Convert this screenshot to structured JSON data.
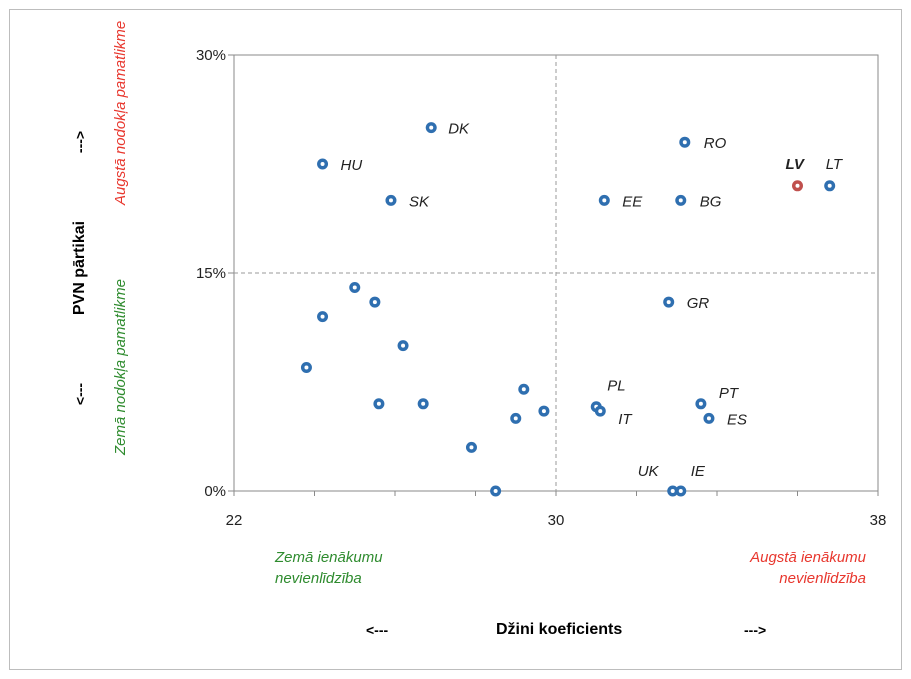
{
  "chart_data": {
    "type": "scatter",
    "title": "",
    "xlabel": "Džini koeficients",
    "ylabel": "PVN pārtikai",
    "xlim": [
      22,
      38
    ],
    "ylim": [
      0,
      30
    ],
    "x_ticks": [
      22,
      30,
      38
    ],
    "x_tick_labels": [
      "22",
      "30",
      "38"
    ],
    "y_ticks": [
      0,
      15,
      30
    ],
    "y_tick_labels": [
      "0%",
      "15%",
      "30%"
    ],
    "reference_lines": {
      "x": 30,
      "y": 15,
      "style": "dashed"
    },
    "marker_color": "#2f6fb0",
    "highlight_color": "#c0504d",
    "points": [
      {
        "x": 24.2,
        "y": 22.5,
        "label": "HU"
      },
      {
        "x": 26.9,
        "y": 25.0,
        "label": "DK"
      },
      {
        "x": 25.9,
        "y": 20.0,
        "label": "SK"
      },
      {
        "x": 33.2,
        "y": 24.0,
        "label": "RO"
      },
      {
        "x": 31.2,
        "y": 20.0,
        "label": "EE"
      },
      {
        "x": 33.1,
        "y": 20.0,
        "label": "BG"
      },
      {
        "x": 36.0,
        "y": 21.0,
        "label": "LV",
        "highlight": true
      },
      {
        "x": 36.8,
        "y": 21.0,
        "label": "LT"
      },
      {
        "x": 32.8,
        "y": 13.0,
        "label": "GR"
      },
      {
        "x": 31.0,
        "y": 5.8,
        "label": "PL"
      },
      {
        "x": 31.1,
        "y": 5.5,
        "label": "IT"
      },
      {
        "x": 33.6,
        "y": 6.0,
        "label": "PT"
      },
      {
        "x": 33.8,
        "y": 5.0,
        "label": "ES"
      },
      {
        "x": 32.9,
        "y": 0.0,
        "label": "UK"
      },
      {
        "x": 33.1,
        "y": 0.0,
        "label": "IE"
      },
      {
        "x": 25.0,
        "y": 14.0
      },
      {
        "x": 24.2,
        "y": 12.0
      },
      {
        "x": 25.5,
        "y": 13.0
      },
      {
        "x": 26.2,
        "y": 10.0
      },
      {
        "x": 23.8,
        "y": 8.5
      },
      {
        "x": 25.6,
        "y": 6.0
      },
      {
        "x": 26.7,
        "y": 6.0
      },
      {
        "x": 29.2,
        "y": 7.0
      },
      {
        "x": 29.7,
        "y": 5.5
      },
      {
        "x": 29.0,
        "y": 5.0
      },
      {
        "x": 27.9,
        "y": 3.0
      },
      {
        "x": 28.5,
        "y": 0.0
      }
    ]
  },
  "annotations": {
    "y_high": "Augstā nodokļa pamatlikme",
    "y_low": "Zemā nodokļa pamatlikme",
    "x_low_line1": "Zemā ienākumu",
    "x_low_line2": "nevienlīdzība",
    "x_high_line1": "Augstā ienākumu",
    "x_high_line2": "nevienlīdzība",
    "arrow_left": "<---",
    "arrow_right": "--->",
    "arrow_down": "<---",
    "arrow_up": "--->"
  }
}
